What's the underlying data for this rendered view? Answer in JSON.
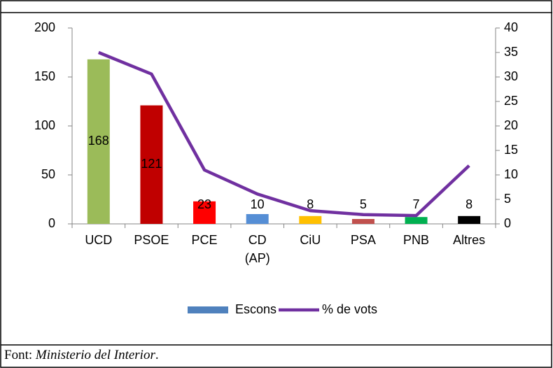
{
  "chart_data": {
    "type": "bar_line",
    "categories": [
      "UCD",
      "PSOE",
      "PCE",
      "CD\n(AP)",
      "CiU",
      "PSA",
      "PNB",
      "Altres"
    ],
    "series": [
      {
        "name": "Escons",
        "type": "bar",
        "color": "#4f81bd",
        "values": [
          168,
          121,
          23,
          10,
          8,
          5,
          7,
          8
        ],
        "colors": [
          "#9bbb59",
          "#c00000",
          "#ff0000",
          "#558ed5",
          "#ffc000",
          "#c0504d",
          "#00b050",
          "#000000"
        ]
      },
      {
        "name": "% de vots",
        "type": "line",
        "axis": "y2",
        "color": "#7030a0",
        "values": [
          35,
          30.6,
          11,
          6.1,
          2.7,
          1.9,
          1.7,
          11.9
        ]
      }
    ],
    "ylim": [
      0,
      200
    ],
    "yticks": [
      0,
      50,
      100,
      150,
      200
    ],
    "y2lim": [
      0,
      40
    ],
    "y2ticks": [
      0,
      5,
      10,
      15,
      20,
      25,
      30,
      35,
      40
    ],
    "legend": "bottom"
  },
  "footer": {
    "prefix": "Font: ",
    "source": "Ministerio del Interior",
    "suffix": "."
  }
}
